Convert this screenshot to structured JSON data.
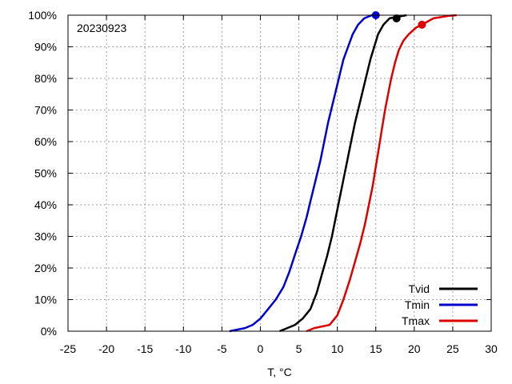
{
  "chart_data": {
    "type": "line",
    "annotation": "20230923",
    "xlabel": "T, °C",
    "ylabel": "",
    "xlim": [
      -25,
      30
    ],
    "ylim": [
      0,
      100
    ],
    "xticks": [
      -25,
      -20,
      -15,
      -10,
      -5,
      0,
      5,
      10,
      15,
      20,
      25,
      30
    ],
    "yticks": [
      0,
      10,
      20,
      30,
      40,
      50,
      60,
      70,
      80,
      90,
      100
    ],
    "ytick_suffix": "%",
    "grid": true,
    "legend_position": "bottom-right",
    "series": [
      {
        "name": "Tvid",
        "color": "#000000",
        "x": [
          2.5,
          3.5,
          4.5,
          5.5,
          6.5,
          7.3,
          8.0,
          8.7,
          9.3,
          9.8,
          10.3,
          10.8,
          11.3,
          11.8,
          12.3,
          12.8,
          13.3,
          13.8,
          14.3,
          14.8,
          15.3,
          16.0,
          16.8,
          17.8,
          19.0
        ],
        "y": [
          0,
          1,
          2,
          4,
          7,
          12,
          18,
          24,
          30,
          36,
          42,
          48,
          54,
          60,
          66,
          71,
          76,
          81,
          86,
          90,
          94,
          97,
          99,
          99.5,
          100
        ],
        "marker": {
          "x": 17.7,
          "y": 99
        }
      },
      {
        "name": "Tmin",
        "color": "#0000cc",
        "x": [
          -4,
          -3,
          -2,
          -1,
          0,
          1,
          2,
          3,
          3.8,
          4.6,
          5.3,
          6.0,
          6.6,
          7.2,
          7.8,
          8.3,
          8.8,
          9.3,
          9.8,
          10.3,
          10.8,
          11.4,
          12.0,
          12.7,
          13.5,
          14.5,
          15.0
        ],
        "y": [
          0,
          0.5,
          1,
          2,
          4,
          7,
          10,
          14,
          19,
          25,
          30,
          36,
          42,
          48,
          54,
          60,
          66,
          71,
          76,
          81,
          86,
          90,
          94,
          97,
          99,
          100,
          100
        ],
        "marker": {
          "x": 15.0,
          "y": 100
        }
      },
      {
        "name": "Tmax",
        "color": "#dd0000",
        "x": [
          6.0,
          7.0,
          9.0,
          10.0,
          10.8,
          11.6,
          12.3,
          13.0,
          13.6,
          14.1,
          14.6,
          15.0,
          15.4,
          15.8,
          16.2,
          16.6,
          17.0,
          17.5,
          18.0,
          18.6,
          19.3,
          20.2,
          21.0,
          22.5,
          24.5,
          25.5
        ],
        "y": [
          0,
          1,
          2,
          5,
          10,
          16,
          22,
          28,
          34,
          40,
          46,
          52,
          58,
          64,
          70,
          75,
          80,
          85,
          89,
          92,
          94,
          96,
          97,
          99,
          99.8,
          100
        ],
        "marker": {
          "x": 21.0,
          "y": 97
        }
      }
    ]
  }
}
